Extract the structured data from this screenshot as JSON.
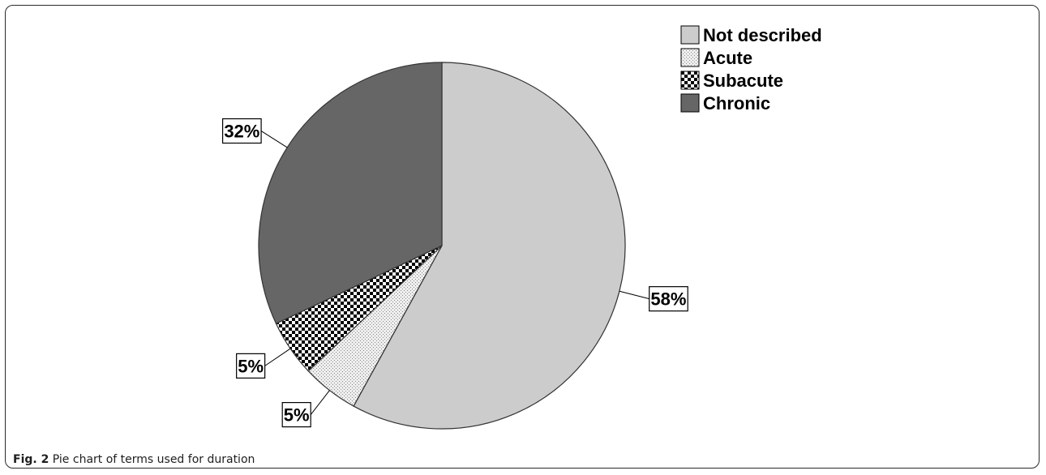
{
  "figure": {
    "label": "Fig. 2",
    "caption": "Pie chart of terms used for duration"
  },
  "chart_data": {
    "type": "pie",
    "title": "",
    "slices": [
      {
        "label": "Not described",
        "value": 58,
        "data_label": "58%",
        "color": "#cccccc",
        "pattern": "solid"
      },
      {
        "label": "Acute",
        "value": 5,
        "data_label": "5%",
        "color": "#eeeeee",
        "pattern": "dots"
      },
      {
        "label": "Subacute",
        "value": 5,
        "data_label": "5%",
        "color": "#000000",
        "pattern": "checker"
      },
      {
        "label": "Chronic",
        "value": 32,
        "data_label": "32%",
        "color": "#666666",
        "pattern": "solid"
      }
    ],
    "start_angle": "12 o'clock",
    "direction": "clockwise",
    "legend_placement": "top-right"
  }
}
